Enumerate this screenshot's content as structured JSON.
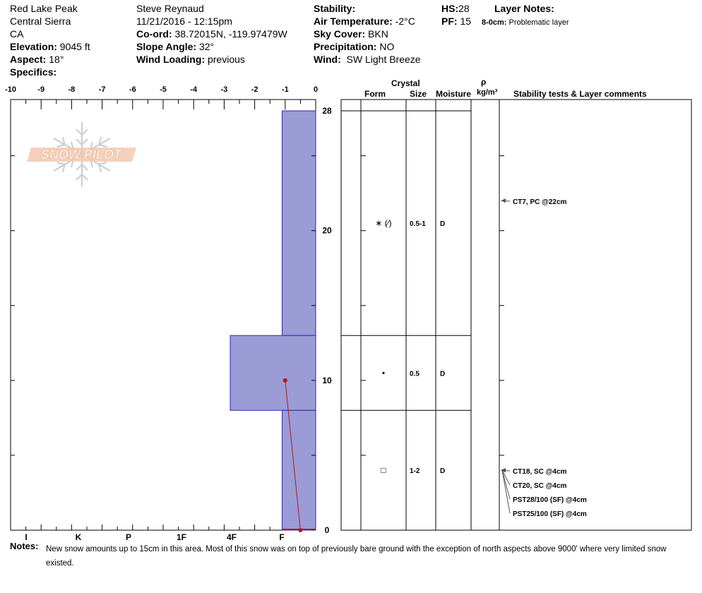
{
  "header": {
    "location": "Red Lake Peak",
    "range": "Central Sierra",
    "state": "CA",
    "elevation_label": "Elevation:",
    "elevation_value": "9045 ft",
    "aspect_label": "Aspect:",
    "aspect_value": "18°",
    "specifics_label": "Specifics:",
    "observer": "Steve Reynaud",
    "datetime": "11/21/2016 - 12:15pm",
    "coord_label": "Co-ord:",
    "coord_value": "38.72015N, -119.97479W",
    "slope_label": "Slope Angle:",
    "slope_value": "32°",
    "wind_loading_label": "Wind Loading:",
    "wind_loading_value": "previous",
    "stability_label": "Stability:",
    "air_temp_label": "Air Temperature:",
    "air_temp_value": "-2°C",
    "sky_label": "Sky Cover:",
    "sky_value": "BKN",
    "precip_label": "Precipitation:",
    "precip_value": "NO",
    "wind_label": "Wind:",
    "wind_value": "SW Light Breeze",
    "hs_label": "HS:",
    "hs_value": "28",
    "pf_label": "PF:",
    "pf_value": "15",
    "layer_notes_label": "Layer Notes:",
    "layer_note_range": "8-0cm:",
    "layer_note_text": "Problematic layer"
  },
  "columns": {
    "crystal": "Crystal",
    "form": "Form",
    "size": "Size",
    "moisture": "Moisture",
    "rho": "ρ",
    "density_unit": "kg/m³",
    "comments": "Stability tests & Layer comments"
  },
  "logo_text": "SNOW PILOT",
  "notes": {
    "label": "Notes:",
    "text": "New snow amounts up to 15cm in this area.  Most of this snow was on top of previously bare ground with the exception of north aspects above 9000' where very limited snow existed."
  },
  "colors": {
    "bar_fill": "#9b9bd6",
    "bar_stroke": "#2a2ab0",
    "temp_line": "#b01818"
  },
  "chart_data": {
    "type": "bar",
    "title": "",
    "x_axis_top": {
      "range": [
        -10,
        0
      ],
      "ticks": [
        "-10",
        "-9",
        "-8",
        "-7",
        "-6",
        "-5",
        "-4",
        "-3",
        "-2",
        "-1",
        "0"
      ]
    },
    "hardness_scale": [
      "I",
      "K",
      "P",
      "1F",
      "4F",
      "F"
    ],
    "y_axis": {
      "range": [
        0,
        28
      ],
      "tick_labels": [
        "0",
        "10",
        "20",
        "28"
      ]
    },
    "hardness_layers": [
      {
        "top": 28,
        "bottom": 13,
        "hardness_value": -1.1
      },
      {
        "top": 13,
        "bottom": 8,
        "hardness_value": -2.8
      },
      {
        "top": 8,
        "bottom": 0,
        "hardness_value": -1.1
      }
    ],
    "temperature_profile": [
      {
        "depth": 10,
        "temp": -1.0
      },
      {
        "depth": 0,
        "temp": -0.5
      }
    ],
    "layers": [
      {
        "top": 28,
        "bottom": 13,
        "form": "∗ (∕)",
        "size": "0.5-1",
        "moisture": "D"
      },
      {
        "top": 13,
        "bottom": 8,
        "form": "•",
        "size": "0.5",
        "moisture": "D"
      },
      {
        "top": 8,
        "bottom": 0,
        "form": "□",
        "size": "1-2",
        "moisture": "D"
      }
    ],
    "stability_tests": [
      {
        "label": "CT7, PC @22cm",
        "depth": 22
      },
      {
        "label": "CT18, SC @4cm",
        "depth": 4
      },
      {
        "label": "CT20, SC @4cm",
        "depth": 4
      },
      {
        "label": "PST28/100 (SF) @4cm",
        "depth": 4
      },
      {
        "label": "PST25/100 (SF) @4cm",
        "depth": 4
      }
    ]
  }
}
